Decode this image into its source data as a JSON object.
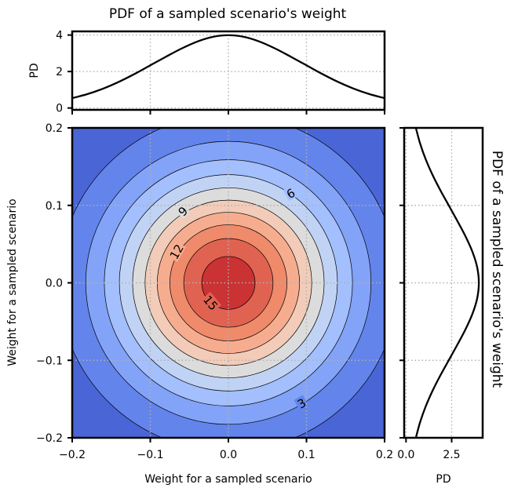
{
  "chart_data": [
    {
      "id": "top-marginal",
      "type": "line",
      "title": "PDF of a sampled scenario's weight",
      "xlabel": "",
      "ylabel": "PD",
      "xlim": [
        -0.2,
        0.2
      ],
      "ylim": [
        -0.1,
        4.2
      ],
      "yticks": [
        0,
        2,
        4
      ],
      "ytick_labels": [
        "0",
        "2",
        "4"
      ],
      "x": [
        -0.2,
        -0.18,
        -0.16,
        -0.14,
        -0.12,
        -0.1,
        -0.08,
        -0.06,
        -0.04,
        -0.02,
        0.0,
        0.02,
        0.04,
        0.06,
        0.08,
        0.1,
        0.12,
        0.14,
        0.16,
        0.18,
        0.2
      ],
      "y": [
        0.54,
        0.77,
        1.07,
        1.44,
        1.87,
        2.34,
        2.81,
        3.26,
        3.64,
        3.9,
        3.99,
        3.9,
        3.64,
        3.26,
        2.81,
        2.34,
        1.87,
        1.44,
        1.07,
        0.77,
        0.54
      ],
      "grid": true
    },
    {
      "id": "joint-contour",
      "type": "heatmap",
      "xlabel": "Weight for a sampled scenario",
      "ylabel": "Weight for a sampled scenario",
      "xlim": [
        -0.2,
        0.2
      ],
      "ylim": [
        -0.2,
        0.2
      ],
      "xticks": [
        -0.2,
        -0.1,
        0.0,
        0.1,
        0.2
      ],
      "xtick_labels": [
        "−0.2",
        "−0.1",
        "0.0",
        "0.1",
        "0.2"
      ],
      "yticks": [
        -0.2,
        -0.1,
        0.0,
        0.1,
        0.2
      ],
      "ytick_labels": [
        "−0.2",
        "−0.1",
        "0.0",
        "0.1",
        "0.2"
      ],
      "peak_density": 15.9,
      "sigma": 0.1,
      "levels": [
        0,
        1.5,
        3,
        4.5,
        6,
        7.5,
        9,
        10.5,
        12,
        13.5,
        15,
        16.5
      ],
      "level_colors": [
        "#4a65d6",
        "#6384eb",
        "#83a3f8",
        "#a3bffd",
        "#c1d3f5",
        "#dcdcdc",
        "#f2ccb9",
        "#f6ad8f",
        "#ef8a6a",
        "#e06351",
        "#ca3233"
      ],
      "contour_labels": [
        {
          "value": 3,
          "text": "3",
          "x": 0.094,
          "y": -0.156,
          "angle": -30
        },
        {
          "value": 6,
          "text": "6",
          "x": 0.08,
          "y": 0.115,
          "angle": -30
        },
        {
          "value": 9,
          "text": "9",
          "x": -0.058,
          "y": 0.092,
          "angle": -45
        },
        {
          "value": 12,
          "text": "12",
          "x": -0.066,
          "y": 0.04,
          "angle": -60
        },
        {
          "value": 15,
          "text": "15",
          "x": -0.023,
          "y": -0.026,
          "angle": 50
        }
      ],
      "colormap": "coolwarm",
      "grid": true
    },
    {
      "id": "right-marginal",
      "type": "line",
      "title": "PDF of a sampled scenario's weight",
      "xlabel": "PD",
      "ylabel": "",
      "xlim": [
        -0.1,
        4.2
      ],
      "ylim": [
        -0.2,
        0.2
      ],
      "xticks": [
        0.0,
        2.5
      ],
      "xtick_labels": [
        "0.0",
        "2.5"
      ],
      "x": [
        0.54,
        0.77,
        1.07,
        1.44,
        1.87,
        2.34,
        2.81,
        3.26,
        3.64,
        3.9,
        3.99,
        3.9,
        3.64,
        3.26,
        2.81,
        2.34,
        1.87,
        1.44,
        1.07,
        0.77,
        0.54
      ],
      "y": [
        -0.2,
        -0.18,
        -0.16,
        -0.14,
        -0.12,
        -0.1,
        -0.08,
        -0.06,
        -0.04,
        -0.02,
        0.0,
        0.02,
        0.04,
        0.06,
        0.08,
        0.1,
        0.12,
        0.14,
        0.16,
        0.18,
        0.2
      ],
      "grid": true
    }
  ]
}
